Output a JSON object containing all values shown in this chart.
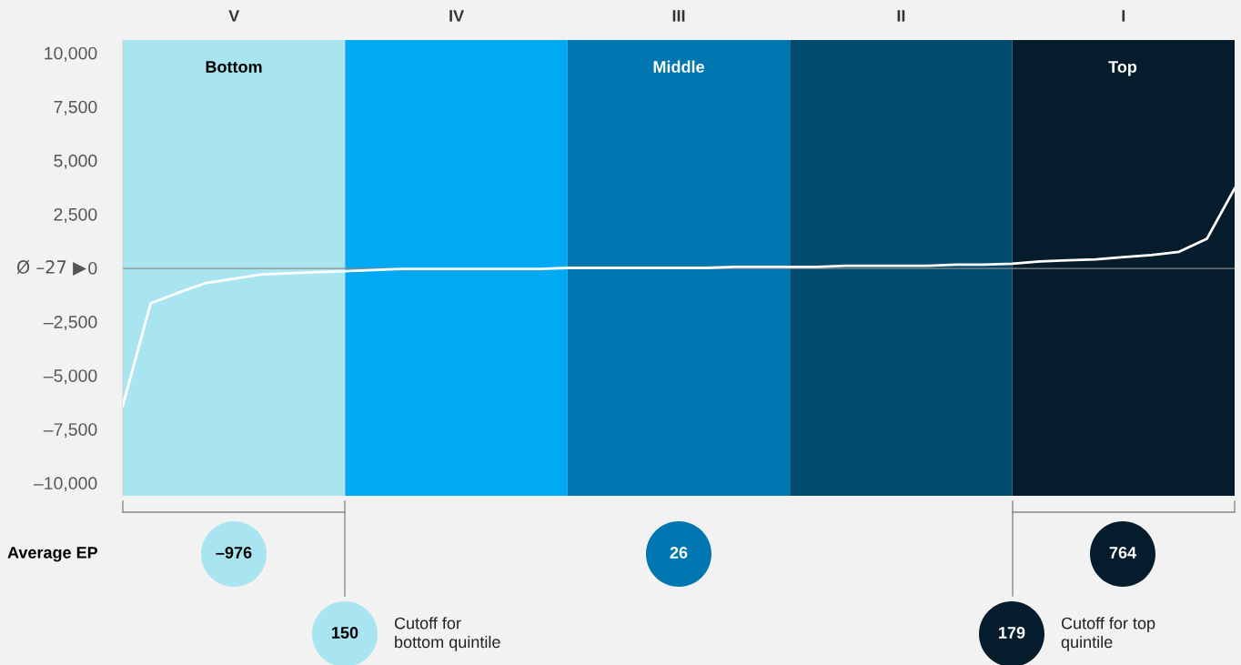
{
  "chart_data": [
    {
      "type": "bar",
      "categories": [
        "V",
        "IV",
        "III",
        "II",
        "I"
      ],
      "ylim": [
        -10600,
        10600
      ],
      "yticks": [
        {
          "value": -10000,
          "label": "–10,000"
        },
        {
          "value": -7500,
          "label": "–7,500"
        },
        {
          "value": -5000,
          "label": "–5,000"
        },
        {
          "value": -2500,
          "label": "–2,500"
        },
        0,
        {
          "value": 2500,
          "label": "2,500"
        },
        {
          "value": 5000,
          "label": "5,000"
        },
        {
          "value": 7500,
          "label": "7,500"
        },
        {
          "value": 10000,
          "label": "10,000"
        }
      ],
      "series": [
        {
          "base": [
            -10600,
            -10600,
            -10600,
            -10600,
            -10600
          ],
          "values": [
            21200,
            21200,
            21200,
            21200,
            21200
          ],
          "colors": [
            "#a9e5f0",
            "#00a9f4",
            "#0077b1",
            "#034b6f",
            "#051c2c"
          ]
        }
      ],
      "grid": false,
      "legend": false,
      "ref_lines": [
        {
          "axis": "y",
          "value": -27,
          "label": "Ø –27 ▶",
          "color": "#8a8a8a"
        }
      ],
      "annotations": [
        "Bottom",
        "Middle",
        "Top",
        "Average EP",
        "–976",
        "26",
        "764",
        "150",
        "Cutoff for\nbottom quintile",
        "179",
        "Cutoff for top\nquintile"
      ]
    },
    {
      "type": "line",
      "categories": [
        null,
        null,
        null,
        null,
        null,
        null,
        null,
        null,
        null,
        null,
        null,
        null,
        null,
        null,
        null,
        null,
        null,
        null,
        null,
        null,
        null,
        null,
        null,
        null,
        null,
        null,
        null,
        null,
        null,
        null,
        null,
        null,
        null,
        null,
        null,
        null,
        null,
        null,
        null,
        null,
        null
      ],
      "ylim": [
        -10600,
        10600
      ],
      "yticks": [
        -10000,
        -7500,
        -5000,
        -2500,
        0,
        2500,
        5000,
        7500,
        10000
      ],
      "tick_labels": false,
      "marker": "none",
      "line_style": "solid",
      "series": [
        {
          "color": "#ffffff",
          "values": [
            -6400,
            -1650,
            -1150,
            -700,
            -500,
            -300,
            -250,
            -200,
            -150,
            -100,
            -50,
            -50,
            -50,
            -50,
            -50,
            -50,
            0,
            0,
            0,
            0,
            0,
            0,
            50,
            50,
            50,
            50,
            100,
            100,
            100,
            100,
            150,
            150,
            200,
            300,
            350,
            400,
            500,
            600,
            750,
            1350,
            3700
          ]
        }
      ]
    }
  ]
}
